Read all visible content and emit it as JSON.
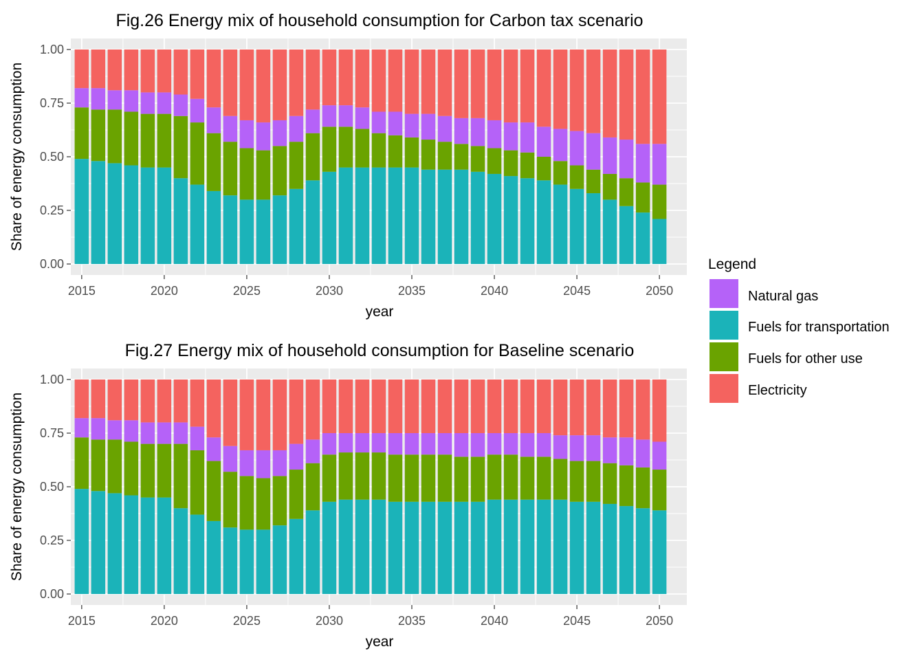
{
  "legend": {
    "title": "Legend",
    "entries": [
      {
        "label": "Natural gas",
        "color": "#B562F8"
      },
      {
        "label": "Fuels for transportation",
        "color": "#1BB3B9"
      },
      {
        "label": "Fuels for other use",
        "color": "#6AA300"
      },
      {
        "label": "Electricity",
        "color": "#F4635F"
      }
    ]
  },
  "chart_data": [
    {
      "type": "bar",
      "stacked": true,
      "title": "Fig.26 Energy mix of household consumption for Carbon tax scenario",
      "xlabel": "year",
      "ylabel": "Share of energy consumption",
      "ylim": [
        0,
        1
      ],
      "x_ticks": [
        2015,
        2020,
        2025,
        2030,
        2035,
        2040,
        2045,
        2050
      ],
      "y_ticks": [
        "0.00",
        "0.25",
        "0.50",
        "0.75",
        "1.00"
      ],
      "grid": true,
      "categories": [
        2015,
        2016,
        2017,
        2018,
        2019,
        2020,
        2021,
        2022,
        2023,
        2024,
        2025,
        2026,
        2027,
        2028,
        2029,
        2030,
        2031,
        2032,
        2033,
        2034,
        2035,
        2036,
        2037,
        2038,
        2039,
        2040,
        2041,
        2042,
        2043,
        2044,
        2045,
        2046,
        2047,
        2048,
        2049,
        2050
      ],
      "series": [
        {
          "name": "Fuels for transportation",
          "values": [
            0.49,
            0.48,
            0.47,
            0.46,
            0.45,
            0.45,
            0.4,
            0.37,
            0.34,
            0.32,
            0.3,
            0.3,
            0.32,
            0.35,
            0.39,
            0.43,
            0.45,
            0.45,
            0.45,
            0.45,
            0.45,
            0.44,
            0.44,
            0.44,
            0.43,
            0.42,
            0.41,
            0.4,
            0.39,
            0.37,
            0.35,
            0.33,
            0.3,
            0.27,
            0.24,
            0.21
          ]
        },
        {
          "name": "Fuels for other use",
          "values": [
            0.24,
            0.24,
            0.25,
            0.25,
            0.25,
            0.25,
            0.29,
            0.29,
            0.27,
            0.25,
            0.24,
            0.23,
            0.23,
            0.22,
            0.22,
            0.21,
            0.19,
            0.18,
            0.16,
            0.15,
            0.14,
            0.14,
            0.13,
            0.12,
            0.12,
            0.12,
            0.12,
            0.12,
            0.11,
            0.11,
            0.11,
            0.11,
            0.12,
            0.13,
            0.14,
            0.16
          ]
        },
        {
          "name": "Natural gas",
          "values": [
            0.09,
            0.1,
            0.09,
            0.1,
            0.1,
            0.1,
            0.1,
            0.11,
            0.12,
            0.12,
            0.13,
            0.13,
            0.12,
            0.12,
            0.11,
            0.1,
            0.1,
            0.1,
            0.1,
            0.11,
            0.11,
            0.12,
            0.12,
            0.12,
            0.13,
            0.13,
            0.13,
            0.14,
            0.14,
            0.15,
            0.16,
            0.17,
            0.17,
            0.18,
            0.18,
            0.19
          ]
        },
        {
          "name": "Electricity",
          "values": [
            0.18,
            0.18,
            0.19,
            0.19,
            0.2,
            0.2,
            0.21,
            0.23,
            0.27,
            0.31,
            0.33,
            0.34,
            0.33,
            0.31,
            0.28,
            0.26,
            0.26,
            0.27,
            0.29,
            0.29,
            0.3,
            0.3,
            0.31,
            0.32,
            0.32,
            0.33,
            0.34,
            0.34,
            0.36,
            0.37,
            0.38,
            0.39,
            0.41,
            0.42,
            0.44,
            0.44
          ]
        }
      ]
    },
    {
      "type": "bar",
      "stacked": true,
      "title": "Fig.27 Energy mix of household consumption for Baseline scenario",
      "xlabel": "year",
      "ylabel": "Share of energy consumption",
      "ylim": [
        0,
        1
      ],
      "x_ticks": [
        2015,
        2020,
        2025,
        2030,
        2035,
        2040,
        2045,
        2050
      ],
      "y_ticks": [
        "0.00",
        "0.25",
        "0.50",
        "0.75",
        "1.00"
      ],
      "grid": true,
      "categories": [
        2015,
        2016,
        2017,
        2018,
        2019,
        2020,
        2021,
        2022,
        2023,
        2024,
        2025,
        2026,
        2027,
        2028,
        2029,
        2030,
        2031,
        2032,
        2033,
        2034,
        2035,
        2036,
        2037,
        2038,
        2039,
        2040,
        2041,
        2042,
        2043,
        2044,
        2045,
        2046,
        2047,
        2048,
        2049,
        2050
      ],
      "series": [
        {
          "name": "Fuels for transportation",
          "values": [
            0.49,
            0.48,
            0.47,
            0.46,
            0.45,
            0.45,
            0.4,
            0.37,
            0.34,
            0.31,
            0.3,
            0.3,
            0.32,
            0.35,
            0.39,
            0.43,
            0.44,
            0.44,
            0.44,
            0.43,
            0.43,
            0.43,
            0.43,
            0.43,
            0.43,
            0.44,
            0.44,
            0.44,
            0.44,
            0.44,
            0.43,
            0.43,
            0.42,
            0.41,
            0.4,
            0.39
          ]
        },
        {
          "name": "Fuels for other use",
          "values": [
            0.24,
            0.24,
            0.25,
            0.25,
            0.25,
            0.25,
            0.3,
            0.3,
            0.28,
            0.26,
            0.25,
            0.24,
            0.23,
            0.23,
            0.22,
            0.22,
            0.22,
            0.22,
            0.22,
            0.22,
            0.22,
            0.22,
            0.22,
            0.21,
            0.21,
            0.21,
            0.21,
            0.2,
            0.2,
            0.19,
            0.19,
            0.19,
            0.19,
            0.19,
            0.19,
            0.19
          ]
        },
        {
          "name": "Natural gas",
          "values": [
            0.09,
            0.1,
            0.09,
            0.1,
            0.1,
            0.1,
            0.1,
            0.11,
            0.11,
            0.12,
            0.12,
            0.13,
            0.12,
            0.12,
            0.11,
            0.1,
            0.09,
            0.09,
            0.09,
            0.1,
            0.1,
            0.1,
            0.1,
            0.11,
            0.11,
            0.1,
            0.1,
            0.11,
            0.11,
            0.11,
            0.12,
            0.12,
            0.12,
            0.13,
            0.13,
            0.13
          ]
        },
        {
          "name": "Electricity",
          "values": [
            0.18,
            0.18,
            0.19,
            0.19,
            0.2,
            0.2,
            0.2,
            0.22,
            0.27,
            0.31,
            0.33,
            0.33,
            0.33,
            0.3,
            0.28,
            0.25,
            0.25,
            0.25,
            0.25,
            0.25,
            0.25,
            0.25,
            0.25,
            0.25,
            0.25,
            0.25,
            0.25,
            0.25,
            0.25,
            0.26,
            0.26,
            0.26,
            0.27,
            0.27,
            0.28,
            0.29
          ]
        }
      ]
    }
  ]
}
